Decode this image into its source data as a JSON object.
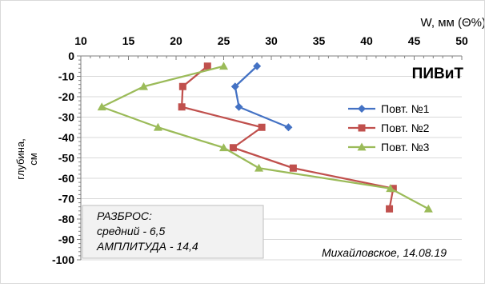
{
  "chart_data": {
    "type": "line",
    "title": "ПИВиТ",
    "xlabel": "W, мм (Θ%)",
    "ylabel": "глубина, см",
    "xlim": [
      10,
      50
    ],
    "ylim": [
      -100,
      0
    ],
    "x_ticks": [
      "10",
      "15",
      "20",
      "25",
      "30",
      "35",
      "40",
      "45",
      "50"
    ],
    "y_ticks": [
      "0",
      "-10",
      "-20",
      "-30",
      "-40",
      "-50",
      "-60",
      "-70",
      "-80",
      "-90",
      "-100"
    ],
    "x_tick_values": [
      10,
      15,
      20,
      25,
      30,
      35,
      40,
      45,
      50
    ],
    "y_tick_values": [
      0,
      -10,
      -20,
      -30,
      -40,
      -50,
      -60,
      -70,
      -80,
      -90,
      -100
    ],
    "legend_position": "right",
    "series": [
      {
        "name": "Повт. №1",
        "color": "#4472c4",
        "marker": "diamond",
        "points": [
          [
            28.5,
            -5
          ],
          [
            26.2,
            -15
          ],
          [
            26.6,
            -25
          ],
          [
            31.8,
            -35
          ]
        ]
      },
      {
        "name": "Повт. №2",
        "color": "#c0504d",
        "marker": "square",
        "points": [
          [
            23.3,
            -5
          ],
          [
            20.7,
            -15
          ],
          [
            20.6,
            -25
          ],
          [
            29.0,
            -35
          ],
          [
            26.0,
            -45
          ],
          [
            32.3,
            -55
          ],
          [
            42.8,
            -65
          ],
          [
            42.4,
            -75
          ]
        ]
      },
      {
        "name": "Повт. №3",
        "color": "#9bbb59",
        "marker": "triangle",
        "points": [
          [
            25.0,
            -5
          ],
          [
            16.6,
            -15
          ],
          [
            12.2,
            -25
          ],
          [
            18.1,
            -35
          ],
          [
            25.0,
            -45
          ],
          [
            28.7,
            -55
          ],
          [
            42.5,
            -65
          ],
          [
            46.5,
            -75
          ]
        ]
      }
    ],
    "annotation_box": {
      "lines": [
        "РАЗБРОС:",
        "средний - 6,5",
        "АМПЛИТУДА - 14,4"
      ]
    },
    "footnote": "Михайловское, 14.08.19"
  }
}
